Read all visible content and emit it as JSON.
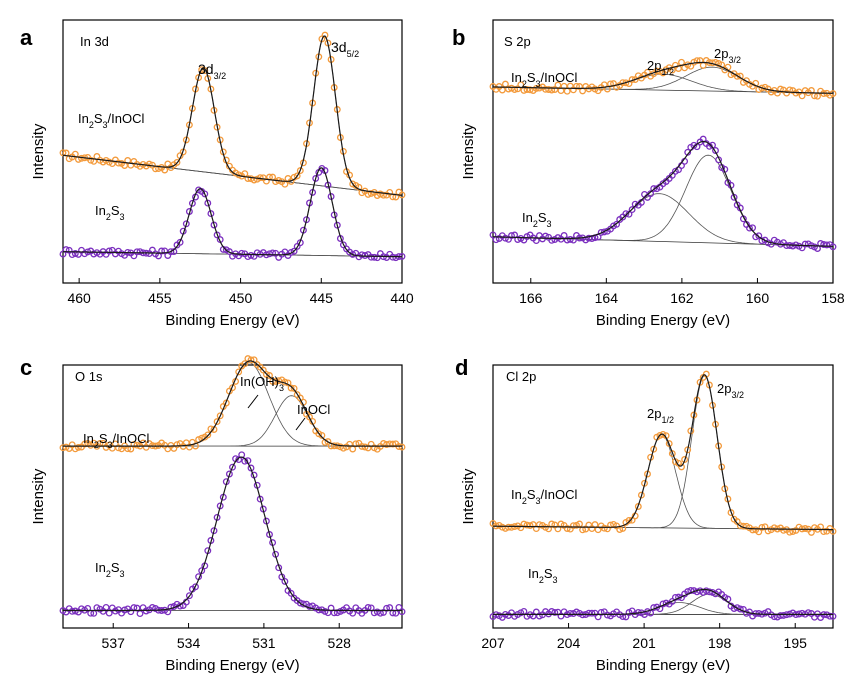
{
  "colors": {
    "sample_a": "#f39a3b",
    "sample_b": "#7b2fbf",
    "fit": "#1a1a1a",
    "component": "#555555",
    "axis": "#000000"
  },
  "chart_data": [
    {
      "type": "line",
      "panel_letter": "a",
      "element": "In 3d",
      "xlabel": "Binding Energy (eV)",
      "ylabel": "Intensity",
      "xlim": [
        461,
        440
      ],
      "x_ticks": [
        460,
        455,
        450,
        445,
        440
      ],
      "x_reversed": true,
      "series": [
        {
          "name": "In2S3/InOCl",
          "label_main": "In",
          "label_parts": [
            "In",
            "2",
            "S",
            "3",
            "/InOCl"
          ],
          "baseline": [
            0.32,
            0.0
          ],
          "peaks": [
            {
              "center": 452.3,
              "height": 0.83,
              "width": 0.68,
              "label": "3d",
              "sub": "3/2"
            },
            {
              "center": 444.8,
              "height": 1.2,
              "width": 0.68,
              "label": "3d",
              "sub": "5/2"
            }
          ]
        },
        {
          "name": "In2S3",
          "label_parts": [
            "In",
            "2",
            "S",
            "3"
          ],
          "baseline": [
            -0.45,
            -0.49
          ],
          "peaks": [
            {
              "center": 452.5,
              "height": 0.52,
              "width": 0.68
            },
            {
              "center": 445.0,
              "height": 0.7,
              "width": 0.68
            }
          ]
        }
      ]
    },
    {
      "type": "line",
      "panel_letter": "b",
      "element": "S 2p",
      "xlabel": "Binding Energy (eV)",
      "ylabel": "Intensity",
      "xlim": [
        167,
        158
      ],
      "x_ticks": [
        166,
        164,
        162,
        160,
        158
      ],
      "x_reversed": true,
      "series": [
        {
          "name": "In2S3/InOCl",
          "label_parts": [
            "In",
            "2",
            "S",
            "3",
            "/InOCl"
          ],
          "baseline": [
            0.48,
            0.44
          ],
          "peaks": [
            {
              "center": 162.5,
              "height": 0.1,
              "width": 0.75,
              "label": "2p",
              "sub": "1/2"
            },
            {
              "center": 161.2,
              "height": 0.15,
              "width": 0.7,
              "label": "2p",
              "sub": "3/2"
            }
          ]
        },
        {
          "name": "In2S3",
          "label_parts": [
            "In",
            "2",
            "S",
            "3"
          ],
          "baseline": [
            -0.46,
            -0.52
          ],
          "peaks": [
            {
              "center": 162.6,
              "height": 0.3,
              "width": 0.78
            },
            {
              "center": 161.3,
              "height": 0.55,
              "width": 0.6
            }
          ]
        }
      ]
    },
    {
      "type": "line",
      "panel_letter": "c",
      "element": "O 1s",
      "xlabel": "Binding Energy (eV)",
      "ylabel": "Intensity",
      "xlim": [
        539,
        525.5
      ],
      "x_ticks": [
        537,
        534,
        531,
        528
      ],
      "x_reversed": true,
      "series": [
        {
          "name": "In2S3/InOCl",
          "label_parts": [
            "In",
            "2",
            "S",
            "3",
            "/InOCl"
          ],
          "baseline": [
            0.25,
            0.25
          ],
          "peaks": [
            {
              "center": 531.6,
              "height": 0.38,
              "width": 0.8,
              "label": "In(OH)",
              "sub": "3"
            },
            {
              "center": 529.9,
              "height": 0.23,
              "width": 0.65,
              "label": "InOCl"
            }
          ]
        },
        {
          "name": "In2S3",
          "label_parts": [
            "In",
            "2",
            "S",
            "3"
          ],
          "baseline": [
            -0.5,
            -0.5
          ],
          "peaks": [
            {
              "center": 531.9,
              "height": 0.7,
              "width": 0.95
            }
          ]
        }
      ]
    },
    {
      "type": "line",
      "panel_letter": "d",
      "element": "Cl 2p",
      "xlabel": "Binding Energy (eV)",
      "ylabel": "Intensity",
      "xlim": [
        207,
        193.5
      ],
      "x_ticks": [
        207,
        204,
        201,
        198,
        195
      ],
      "x_reversed": true,
      "series": [
        {
          "name": "In2S3/InOCl",
          "label_parts": [
            "In",
            "2",
            "S",
            "3",
            "/InOCl"
          ],
          "baseline": [
            0.02,
            0.0
          ],
          "peaks": [
            {
              "center": 200.3,
              "height": 0.55,
              "width": 0.55,
              "label": "2p",
              "sub": "1/2"
            },
            {
              "center": 198.6,
              "height": 0.9,
              "width": 0.5,
              "label": "2p",
              "sub": "3/2"
            }
          ]
        },
        {
          "name": "In2S3",
          "label_parts": [
            "In",
            "2",
            "S",
            "3"
          ],
          "baseline": [
            -0.5,
            -0.5
          ],
          "peaks": [
            {
              "center": 199.6,
              "height": 0.07,
              "width": 0.8
            },
            {
              "center": 198.4,
              "height": 0.12,
              "width": 0.7
            }
          ]
        }
      ]
    }
  ]
}
